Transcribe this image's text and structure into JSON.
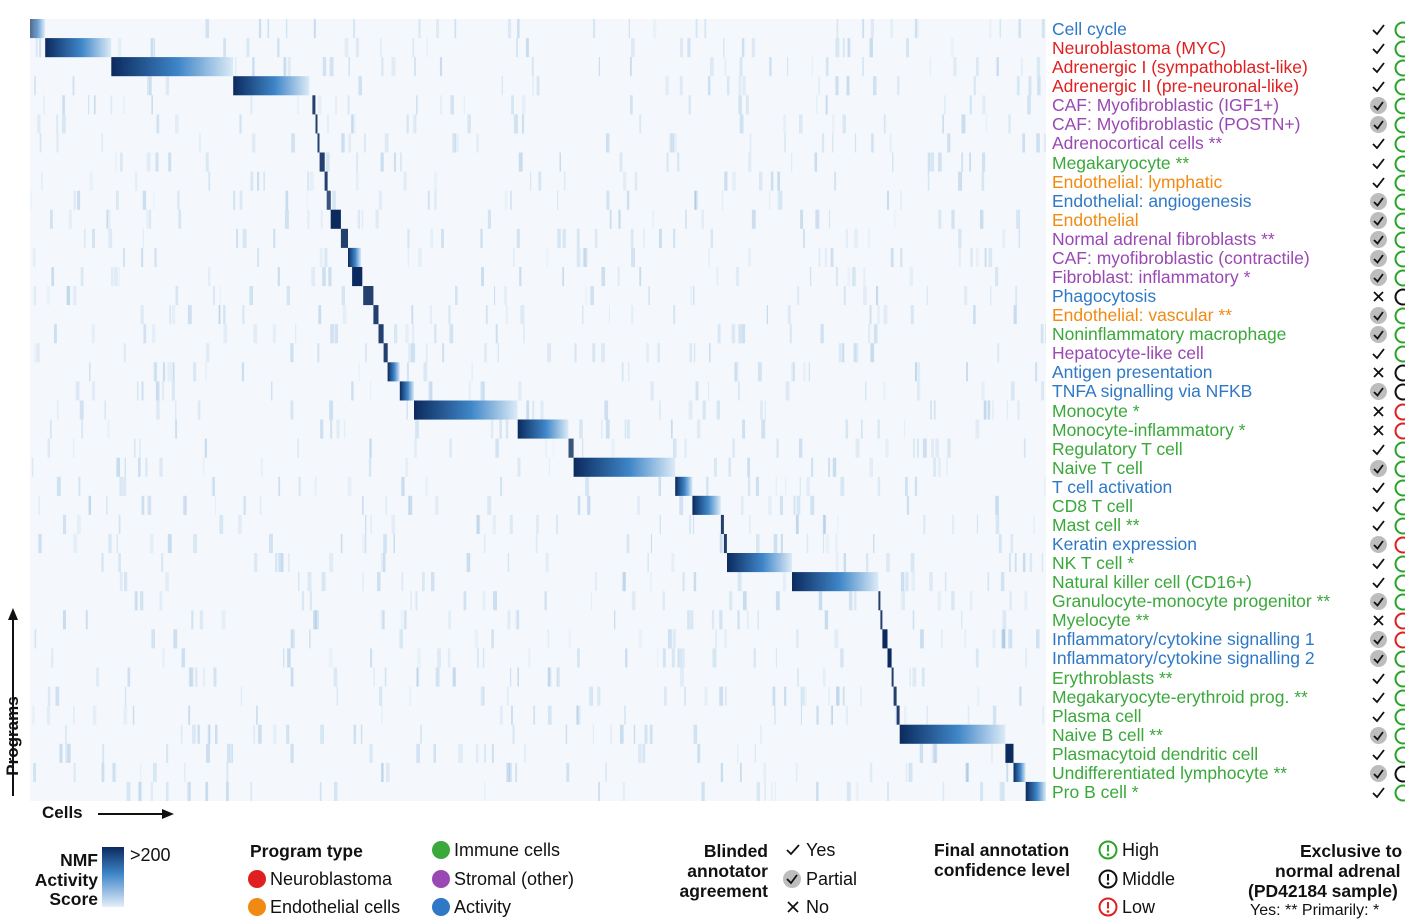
{
  "chart_data": {
    "type": "heatmap",
    "xlabel": "Cells",
    "ylabel": "Programs",
    "color_scale": {
      "label": "NMF Activity Score",
      "max_label": ">200",
      "low": "#ffffff",
      "high": "#0b2a5e"
    },
    "programs": [
      {
        "name": "Cell cycle",
        "type": "Activity",
        "agreement": "Yes",
        "confidence": "High"
      },
      {
        "name": "Neuroblastoma (MYC)",
        "type": "Neuroblastoma",
        "agreement": "Yes",
        "confidence": "High"
      },
      {
        "name": "Adrenergic I (sympathoblast-like)",
        "type": "Neuroblastoma",
        "agreement": "Yes",
        "confidence": "High"
      },
      {
        "name": "Adrenergic II (pre-neuronal-like)",
        "type": "Neuroblastoma",
        "agreement": "Yes",
        "confidence": "High"
      },
      {
        "name": "CAF: Myofibroblastic (IGF1+)",
        "type": "Stromal (other)",
        "agreement": "Partial",
        "confidence": "High"
      },
      {
        "name": "CAF: Myofibroblastic (POSTN+)",
        "type": "Stromal (other)",
        "agreement": "Partial",
        "confidence": "High"
      },
      {
        "name": "Adrenocortical cells **",
        "type": "Stromal (other)",
        "agreement": "Yes",
        "confidence": "High"
      },
      {
        "name": "Megakaryocyte **",
        "type": "Immune cells",
        "agreement": "Yes",
        "confidence": "High"
      },
      {
        "name": "Endothelial: lymphatic",
        "type": "Endothelial cells",
        "agreement": "Yes",
        "confidence": "High"
      },
      {
        "name": "Endothelial: angiogenesis",
        "type": "Activity",
        "agreement": "Partial",
        "confidence": "High"
      },
      {
        "name": "Endothelial",
        "type": "Endothelial cells",
        "agreement": "Partial",
        "confidence": "High"
      },
      {
        "name": "Normal adrenal fibroblasts **",
        "type": "Stromal (other)",
        "agreement": "Partial",
        "confidence": "High"
      },
      {
        "name": "CAF: myofibroblastic (contractile)",
        "type": "Stromal (other)",
        "agreement": "Partial",
        "confidence": "High"
      },
      {
        "name": "Fibroblast: inflammatory *",
        "type": "Stromal (other)",
        "agreement": "Partial",
        "confidence": "High"
      },
      {
        "name": "Phagocytosis",
        "type": "Activity",
        "agreement": "No",
        "confidence": "Middle"
      },
      {
        "name": "Endothelial: vascular **",
        "type": "Endothelial cells",
        "agreement": "Partial",
        "confidence": "High"
      },
      {
        "name": "Noninflammatory macrophage",
        "type": "Immune cells",
        "agreement": "Partial",
        "confidence": "High"
      },
      {
        "name": "Hepatocyte-like cell",
        "type": "Stromal (other)",
        "agreement": "Yes",
        "confidence": "High"
      },
      {
        "name": "Antigen presentation",
        "type": "Activity",
        "agreement": "No",
        "confidence": "Middle"
      },
      {
        "name": "TNFA signalling via NFKB",
        "type": "Activity",
        "agreement": "Partial",
        "confidence": "Middle"
      },
      {
        "name": "Monocyte *",
        "type": "Immune cells",
        "agreement": "No",
        "confidence": "Low"
      },
      {
        "name": "Monocyte-inflammatory *",
        "type": "Immune cells",
        "agreement": "No",
        "confidence": "Low"
      },
      {
        "name": "Regulatory T cell",
        "type": "Immune cells",
        "agreement": "Yes",
        "confidence": "High"
      },
      {
        "name": "Naive T cell",
        "type": "Immune cells",
        "agreement": "Partial",
        "confidence": "High"
      },
      {
        "name": "T cell activation",
        "type": "Activity",
        "agreement": "Yes",
        "confidence": "High"
      },
      {
        "name": "CD8 T cell",
        "type": "Immune cells",
        "agreement": "Yes",
        "confidence": "High"
      },
      {
        "name": "Mast cell **",
        "type": "Immune cells",
        "agreement": "Yes",
        "confidence": "High"
      },
      {
        "name": "Keratin expression",
        "type": "Activity",
        "agreement": "Partial",
        "confidence": "Low"
      },
      {
        "name": "NK T cell *",
        "type": "Immune cells",
        "agreement": "Yes",
        "confidence": "High"
      },
      {
        "name": "Natural killer cell (CD16+)",
        "type": "Immune cells",
        "agreement": "Yes",
        "confidence": "High"
      },
      {
        "name": "Granulocyte-monocyte progenitor **",
        "type": "Immune cells",
        "agreement": "Partial",
        "confidence": "High"
      },
      {
        "name": "Myelocyte **",
        "type": "Immune cells",
        "agreement": "No",
        "confidence": "Low"
      },
      {
        "name": "Inflammatory/cytokine signalling 1",
        "type": "Activity",
        "agreement": "Partial",
        "confidence": "Low"
      },
      {
        "name": "Inflammatory/cytokine signalling 2",
        "type": "Activity",
        "agreement": "Partial",
        "confidence": "High"
      },
      {
        "name": "Erythroblasts **",
        "type": "Immune cells",
        "agreement": "Yes",
        "confidence": "High"
      },
      {
        "name": "Megakaryocyte-erythroid prog. **",
        "type": "Immune cells",
        "agreement": "Yes",
        "confidence": "High"
      },
      {
        "name": "Plasma cell",
        "type": "Immune cells",
        "agreement": "Yes",
        "confidence": "High"
      },
      {
        "name": "Naive B cell **",
        "type": "Immune cells",
        "agreement": "Partial",
        "confidence": "High"
      },
      {
        "name": "Plasmacytoid dendritic cell",
        "type": "Immune cells",
        "agreement": "Yes",
        "confidence": "High"
      },
      {
        "name": "Undifferentiated lymphocyte **",
        "type": "Immune cells",
        "agreement": "Partial",
        "confidence": "Middle"
      },
      {
        "name": "Pro B cell *",
        "type": "Immune cells",
        "agreement": "Yes",
        "confidence": "High"
      }
    ],
    "cell_blocks": [
      {
        "program": "Cell cycle",
        "start": 0.0,
        "end": 0.015,
        "intensity": 0.7
      },
      {
        "program": "Neuroblastoma (MYC)",
        "start": 0.015,
        "end": 0.08,
        "intensity": 1.0
      },
      {
        "program": "Adrenergic I (sympathoblast-like)",
        "start": 0.08,
        "end": 0.2,
        "intensity": 1.0
      },
      {
        "program": "Adrenergic II (pre-neuronal-like)",
        "start": 0.2,
        "end": 0.275,
        "intensity": 1.0
      },
      {
        "program": "CAF: Myofibroblastic (IGF1+)",
        "start": 0.278,
        "end": 0.281,
        "intensity": 0.9
      },
      {
        "program": "CAF: Myofibroblastic (POSTN+)",
        "start": 0.281,
        "end": 0.283,
        "intensity": 0.9
      },
      {
        "program": "Adrenocortical cells **",
        "start": 0.283,
        "end": 0.285,
        "intensity": 0.9
      },
      {
        "program": "Megakaryocyte **",
        "start": 0.285,
        "end": 0.29,
        "intensity": 0.9
      },
      {
        "program": "Endothelial: lymphatic",
        "start": 0.29,
        "end": 0.293,
        "intensity": 0.9
      },
      {
        "program": "Endothelial: angiogenesis",
        "start": 0.292,
        "end": 0.296,
        "intensity": 0.8
      },
      {
        "program": "Endothelial",
        "start": 0.296,
        "end": 0.306,
        "intensity": 1.0
      },
      {
        "program": "Normal adrenal fibroblasts **",
        "start": 0.306,
        "end": 0.313,
        "intensity": 0.9
      },
      {
        "program": "CAF: myofibroblastic (contractile)",
        "start": 0.313,
        "end": 0.326,
        "intensity": 1.0
      },
      {
        "program": "Fibroblast: inflammatory *",
        "start": 0.317,
        "end": 0.327,
        "intensity": 1.0
      },
      {
        "program": "Phagocytosis",
        "start": 0.328,
        "end": 0.338,
        "intensity": 0.9
      },
      {
        "program": "Endothelial: vascular **",
        "start": 0.338,
        "end": 0.343,
        "intensity": 0.9
      },
      {
        "program": "Noninflammatory macrophage",
        "start": 0.343,
        "end": 0.348,
        "intensity": 0.9
      },
      {
        "program": "Hepatocyte-like cell",
        "start": 0.348,
        "end": 0.352,
        "intensity": 0.9
      },
      {
        "program": "Antigen presentation",
        "start": 0.352,
        "end": 0.364,
        "intensity": 1.0
      },
      {
        "program": "TNFA signalling via NFKB",
        "start": 0.364,
        "end": 0.378,
        "intensity": 1.0
      },
      {
        "program": "Monocyte *",
        "start": 0.378,
        "end": 0.48,
        "intensity": 1.0
      },
      {
        "program": "Monocyte-inflammatory *",
        "start": 0.48,
        "end": 0.53,
        "intensity": 1.0
      },
      {
        "program": "Regulatory T cell",
        "start": 0.53,
        "end": 0.535,
        "intensity": 0.8
      },
      {
        "program": "Naive T cell",
        "start": 0.535,
        "end": 0.635,
        "intensity": 1.0
      },
      {
        "program": "T cell activation",
        "start": 0.635,
        "end": 0.652,
        "intensity": 1.0
      },
      {
        "program": "CD8 T cell",
        "start": 0.652,
        "end": 0.68,
        "intensity": 1.0
      },
      {
        "program": "Mast cell **",
        "start": 0.68,
        "end": 0.683,
        "intensity": 0.9
      },
      {
        "program": "Keratin expression",
        "start": 0.683,
        "end": 0.686,
        "intensity": 0.9
      },
      {
        "program": "NK T cell *",
        "start": 0.686,
        "end": 0.75,
        "intensity": 1.0
      },
      {
        "program": "Natural killer cell (CD16+)",
        "start": 0.75,
        "end": 0.835,
        "intensity": 1.0
      },
      {
        "program": "Granulocyte-monocyte progenitor **",
        "start": 0.835,
        "end": 0.837,
        "intensity": 0.9
      },
      {
        "program": "Myelocyte **",
        "start": 0.837,
        "end": 0.839,
        "intensity": 0.9
      },
      {
        "program": "Inflammatory/cytokine signalling 1",
        "start": 0.839,
        "end": 0.844,
        "intensity": 1.0
      },
      {
        "program": "Inflammatory/cytokine signalling 2",
        "start": 0.844,
        "end": 0.848,
        "intensity": 1.0
      },
      {
        "program": "Erythroblasts **",
        "start": 0.848,
        "end": 0.85,
        "intensity": 0.9
      },
      {
        "program": "Megakaryocyte-erythroid prog. **",
        "start": 0.85,
        "end": 0.853,
        "intensity": 0.9
      },
      {
        "program": "Plasma cell",
        "start": 0.853,
        "end": 0.856,
        "intensity": 0.9
      },
      {
        "program": "Naive B cell **",
        "start": 0.856,
        "end": 0.96,
        "intensity": 1.0
      },
      {
        "program": "Plasmacytoid dendritic cell",
        "start": 0.96,
        "end": 0.968,
        "intensity": 1.0
      },
      {
        "program": "Undifferentiated lymphocyte **",
        "start": 0.968,
        "end": 0.98,
        "intensity": 1.0
      },
      {
        "program": "Pro B cell *",
        "start": 0.98,
        "end": 1.0,
        "intensity": 1.0
      }
    ]
  },
  "axes": {
    "x_label": "Cells",
    "y_label": "Programs"
  },
  "colors": {
    "Neuroblastoma": "#e02020",
    "Endothelial cells": "#f08a12",
    "Immune cells": "#3aa83a",
    "Stromal (other)": "#9a48b4",
    "Activity": "#2e78c6",
    "heat_high": "#0b2a5e",
    "heat_mid": "#3f86c8",
    "heat_low": "#dcebf7",
    "confidence_high": "#2aa52a",
    "confidence_middle": "#111111",
    "confidence_low": "#e02020",
    "partial_fill": "#bdbdbd"
  },
  "legend": {
    "nmf": {
      "line1": "NMF",
      "line2": "Activity",
      "line3": "Score",
      "max": ">200"
    },
    "program_type": {
      "title": "Program type",
      "items": [
        {
          "label": "Neuroblastoma",
          "color": "#e02020"
        },
        {
          "label": "Endothelial cells",
          "color": "#f08a12"
        },
        {
          "label": "Immune cells",
          "color": "#3aa83a"
        },
        {
          "label": "Stromal (other)",
          "color": "#9a48b4"
        },
        {
          "label": "Activity",
          "color": "#2e78c6"
        }
      ]
    },
    "agreement": {
      "title1": "Blinded",
      "title2": "annotator",
      "title3": "agreement",
      "yes": "Yes",
      "partial": "Partial",
      "no": "No"
    },
    "confidence": {
      "title1": "Final annotation",
      "title2": "confidence level",
      "high": "High",
      "middle": "Middle",
      "low": "Low"
    },
    "exclusive": {
      "title1": "Exclusive to",
      "title2": "normal adrenal",
      "title3": "(PD42184 sample)",
      "note": "Yes: ** Primarily: *"
    }
  }
}
